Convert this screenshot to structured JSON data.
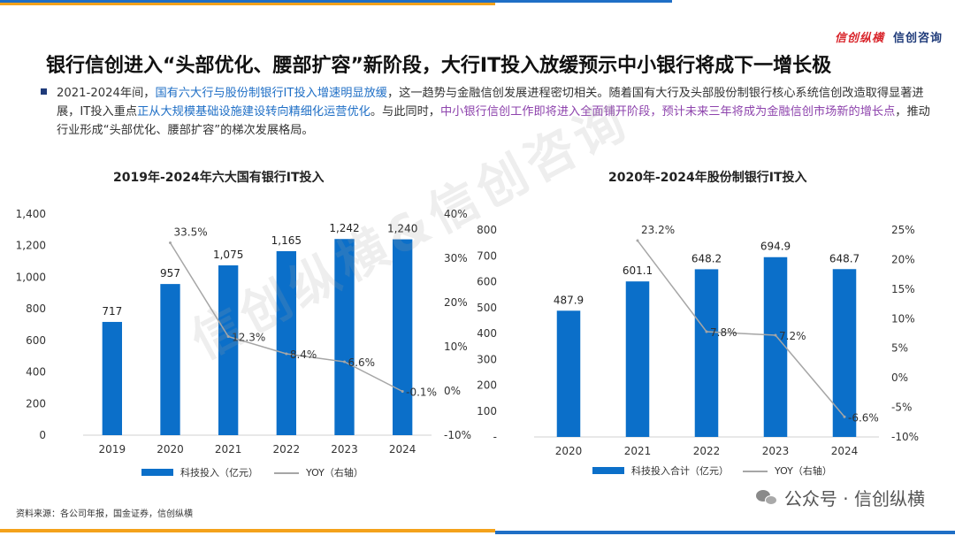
{
  "header": {
    "logo_left": "信创纵横",
    "logo_right": "信创咨询",
    "title": "银行信创进入“头部优化、腰部扩容”新阶段，大行IT投入放缓预示中小银行将成下一增长极"
  },
  "summary": {
    "p1": "2021-2024年间，",
    "p2": "国有六大行与股份制银行IT投入增速明显放缓",
    "p3": "，这一趋势与金融信创发展进程密切相关。随着国有大行及头部股份制银行核心系统信创改造取得显著进展，IT投入重点",
    "p4": "正从大规模基础设施建设转向精细化运营优化",
    "p5": "。与此同时，",
    "p6": "中小银行信创工作即将进入全面铺开阶段，预计未来三年将成为金融信创市场新的增长点",
    "p7": "，推动行业形成“头部优化、腰部扩容”的梯次发展格局。"
  },
  "watermark": "信创纵横&信创咨询",
  "source": "资料来源：各公司年报，国金证券，信创纵横",
  "wechat": "公众号 · 信创纵横",
  "chart_data": [
    {
      "type": "bar",
      "title": "2019年-2024年六大国有银行IT投入",
      "categories": [
        "2019",
        "2020",
        "2021",
        "2022",
        "2023",
        "2024"
      ],
      "bar_labels": [
        "717",
        "957",
        "1,075",
        "1,165",
        "1,242",
        "1,240"
      ],
      "series": [
        {
          "name": "科技投入（亿元）",
          "kind": "bar",
          "axis": "left",
          "values": [
            717,
            957,
            1075,
            1165,
            1242,
            1240
          ],
          "color": "#0b6fc9"
        },
        {
          "name": "YOY（右轴）",
          "kind": "line",
          "axis": "right",
          "x": [
            "2020",
            "2021",
            "2022",
            "2023",
            "2024"
          ],
          "values": [
            33.5,
            12.3,
            8.4,
            6.6,
            -0.1
          ],
          "labels": [
            "33.5%",
            "12.3%",
            "8.4%",
            "6.6%",
            "-0.1%"
          ],
          "color": "#a6a6a6"
        }
      ],
      "ylim": [
        0,
        1400
      ],
      "yticks": [
        0,
        200,
        400,
        600,
        800,
        1000,
        1200,
        1400
      ],
      "ytick_labels": [
        "0",
        "200",
        "400",
        "600",
        "800",
        "1,000",
        "1,200",
        "1,400"
      ],
      "y2lim": [
        -10,
        40
      ],
      "y2ticks": [
        -10,
        0,
        10,
        20,
        30,
        40
      ],
      "y2tick_labels": [
        "-10%",
        "0%",
        "10%",
        "20%",
        "30%",
        "40%"
      ],
      "grid": false,
      "legend": "bottom"
    },
    {
      "type": "bar",
      "title": "2020年-2024年股份制银行IT投入",
      "categories": [
        "2020",
        "2021",
        "2022",
        "2023",
        "2024"
      ],
      "bar_labels": [
        "487.9",
        "601.1",
        "648.2",
        "694.9",
        "648.7"
      ],
      "series": [
        {
          "name": "科技投入合计（亿元）",
          "kind": "bar",
          "axis": "left",
          "values": [
            487.9,
            601.1,
            648.2,
            694.9,
            648.7
          ],
          "color": "#0b6fc9"
        },
        {
          "name": "YOY（右轴）",
          "kind": "line",
          "axis": "right",
          "x": [
            "2021",
            "2022",
            "2023",
            "2024"
          ],
          "values": [
            23.2,
            7.8,
            7.2,
            -6.6
          ],
          "labels": [
            "23.2%",
            "7.8%",
            "7.2%",
            "-6.6%"
          ],
          "color": "#a6a6a6"
        }
      ],
      "ylim": [
        0,
        800
      ],
      "yticks": [
        0,
        100,
        200,
        300,
        400,
        500,
        600,
        700,
        800
      ],
      "ytick_labels": [
        "-",
        "100",
        "200",
        "300",
        "400",
        "500",
        "600",
        "700",
        "800"
      ],
      "y2lim": [
        -10,
        25
      ],
      "y2ticks": [
        -10,
        -5,
        0,
        5,
        10,
        15,
        20,
        25
      ],
      "y2tick_labels": [
        "-10%",
        "-5%",
        "0%",
        "5%",
        "10%",
        "15%",
        "20%",
        "25%"
      ],
      "grid": false,
      "legend": "bottom"
    }
  ]
}
